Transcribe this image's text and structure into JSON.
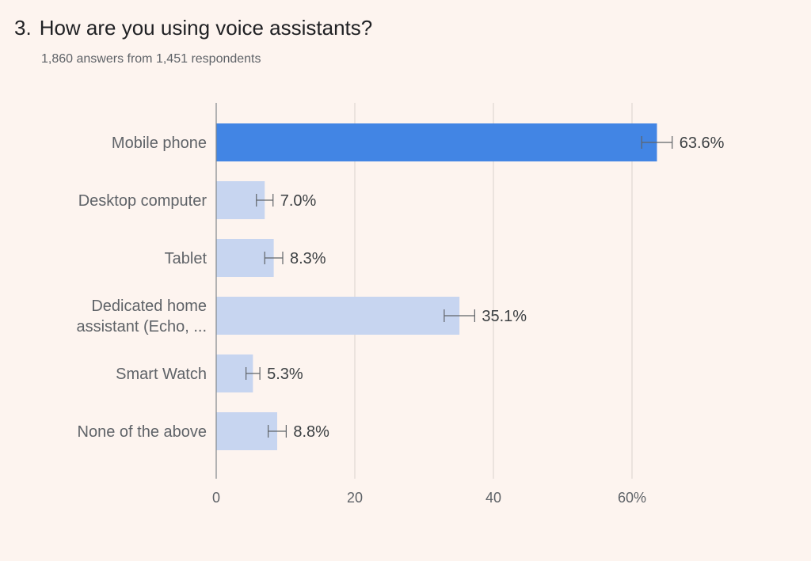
{
  "question": {
    "number": "3.",
    "title": "How are you using voice assistants?",
    "summary": "1,860 answers from 1,451 respondents"
  },
  "colors": {
    "highlight": "#4285e4",
    "bar": "#c7d5f0",
    "grid": "#d9d2cd",
    "axis": "#80868b",
    "error_bar": "#5f6368"
  },
  "chart_data": {
    "type": "bar",
    "orientation": "horizontal",
    "categories": [
      [
        "Mobile phone"
      ],
      [
        "Desktop computer"
      ],
      [
        "Tablet"
      ],
      [
        "Dedicated home",
        "assistant (Echo, ..."
      ],
      [
        "Smart Watch"
      ],
      [
        "None of the above"
      ]
    ],
    "values": [
      63.6,
      7.0,
      8.3,
      35.1,
      5.3,
      8.8
    ],
    "value_labels": [
      "63.6%",
      "7.0%",
      "8.3%",
      "35.1%",
      "5.3%",
      "8.8%"
    ],
    "error_margins": [
      2.2,
      1.2,
      1.3,
      2.2,
      1.0,
      1.3
    ],
    "highlight_index": 0,
    "xlim": [
      0,
      70
    ],
    "x_ticks": [
      0,
      20,
      40,
      60
    ],
    "x_tick_labels": [
      "0",
      "20",
      "40",
      "60%"
    ],
    "grid": true
  }
}
